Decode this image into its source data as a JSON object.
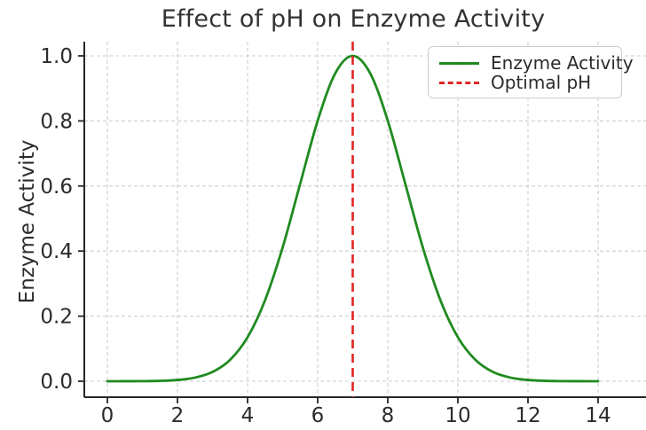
{
  "chart": {
    "title": "Effect of pH on Enzyme Activity",
    "ylabel": "Enzyme Activity"
  },
  "legend": {
    "items": [
      {
        "label": "Enzyme Activity",
        "color": "#1f8a1f",
        "line_style": "solid"
      },
      {
        "label": "Optimal pH",
        "color": "#e32424",
        "line_style": "dashed"
      }
    ]
  },
  "chart_data": {
    "type": "line",
    "title": "Effect of pH on Enzyme Activity",
    "xlabel": "",
    "ylabel": "Enzyme Activity",
    "xlim": [
      -0.7,
      15.4
    ],
    "ylim": [
      -0.05,
      1.05
    ],
    "grid": true,
    "grid_style": "dashed",
    "legend_position": "upper right",
    "x_ticks": [
      0,
      2,
      4,
      6,
      8,
      10,
      12,
      14
    ],
    "x_tick_labels": [
      "0",
      "2",
      "4",
      "6",
      "8",
      "10",
      "12",
      "14"
    ],
    "y_ticks": [
      0.0,
      0.2,
      0.4,
      0.6,
      0.8,
      1.0
    ],
    "y_tick_labels": [
      "0.0",
      "0.2",
      "0.4",
      "0.6",
      "0.8",
      "1.0"
    ],
    "optimal_ph": 7,
    "peak_activity": 1.0,
    "series": [
      {
        "name": "Enzyme Activity",
        "type": "line",
        "color": "#1f8a1f",
        "x": [
          0,
          0.5,
          1,
          1.5,
          2,
          2.5,
          3,
          3.5,
          4,
          4.5,
          5,
          5.5,
          6,
          6.5,
          7,
          7.5,
          8,
          8.5,
          9,
          9.5,
          10,
          10.5,
          11,
          11.5,
          12,
          12.5,
          13,
          13.5,
          14
        ],
        "y": [
          0.0,
          0.0001,
          0.0003,
          0.0012,
          0.0039,
          0.0111,
          0.0285,
          0.0657,
          0.1353,
          0.2494,
          0.4111,
          0.6065,
          0.8007,
          0.946,
          1.0,
          0.946,
          0.8007,
          0.6065,
          0.4111,
          0.2494,
          0.1353,
          0.0657,
          0.0285,
          0.0111,
          0.0039,
          0.0012,
          0.0003,
          0.0001,
          0.0
        ]
      },
      {
        "name": "Optimal pH",
        "type": "vline",
        "x": 7,
        "color": "#e32424",
        "style": "dashed"
      }
    ]
  }
}
